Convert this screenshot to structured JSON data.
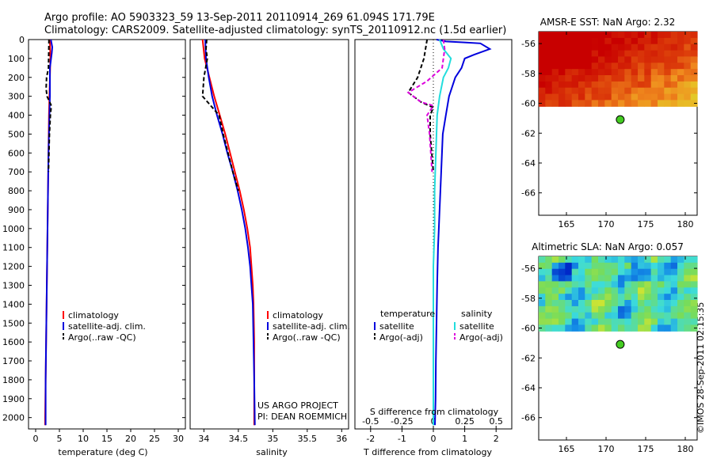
{
  "header": {
    "line1": "Argo profile: AO 5903323_59 13-Sep-2011 20110914_269 61.094S 171.79E",
    "line2": "Climatology: CARS2009. Satellite-adjusted climatology: synTS_20110912.nc (1.5d earlier)"
  },
  "side_label": "©IMOS 28-Sep-2011 02:15:35",
  "colors": {
    "climatology": "#ff0000",
    "satellite": "#0000dd",
    "argo": "#000000",
    "satellite_s": "#22dddd",
    "argo_s": "#dd00dd"
  },
  "chart_data": [
    {
      "type": "line",
      "id": "temperature",
      "xlabel": "temperature (deg C)",
      "xlim": [
        -1.5,
        31.5
      ],
      "ylim": [
        0,
        2060
      ],
      "y_inverted": true,
      "xticks": [
        0,
        5,
        10,
        15,
        20,
        25,
        30
      ],
      "yticks": [
        0,
        100,
        200,
        300,
        400,
        500,
        600,
        700,
        800,
        900,
        1000,
        1100,
        1200,
        1300,
        1400,
        1500,
        1600,
        1700,
        1800,
        1900,
        2000
      ],
      "legend": [
        "climatology",
        "satellite-adj. clim.",
        "Argo(..raw -QC)"
      ],
      "series": [
        {
          "name": "climatology",
          "color": "#ff0000",
          "dash": "",
          "points": [
            [
              3.0,
              0
            ],
            [
              3.1,
              100
            ],
            [
              3.0,
              200
            ],
            [
              2.9,
              300
            ],
            [
              2.8,
              400
            ],
            [
              2.7,
              600
            ],
            [
              2.6,
              800
            ],
            [
              2.5,
              1000
            ],
            [
              2.4,
              1200
            ],
            [
              2.3,
              1400
            ],
            [
              2.2,
              1600
            ],
            [
              2.1,
              1800
            ],
            [
              2.0,
              2000
            ],
            [
              2.0,
              2040
            ]
          ]
        },
        {
          "name": "satellite-adj. clim.",
          "color": "#0000dd",
          "dash": "",
          "points": [
            [
              3.2,
              0
            ],
            [
              3.5,
              40
            ],
            [
              3.4,
              70
            ],
            [
              3.0,
              150
            ],
            [
              3.0,
              300
            ],
            [
              2.9,
              400
            ],
            [
              2.7,
              600
            ],
            [
              2.6,
              800
            ],
            [
              2.5,
              1000
            ],
            [
              2.4,
              1200
            ],
            [
              2.3,
              1400
            ],
            [
              2.2,
              1600
            ],
            [
              2.1,
              1800
            ],
            [
              2.1,
              2040
            ]
          ]
        },
        {
          "name": "Argo(..raw -QC)",
          "color": "#000000",
          "dash": "5,3",
          "points": [
            [
              2.8,
              0
            ],
            [
              2.7,
              150
            ],
            [
              2.3,
              200
            ],
            [
              2.2,
              260
            ],
            [
              2.4,
              300
            ],
            [
              3.3,
              350
            ],
            [
              3.1,
              400
            ],
            [
              2.9,
              500
            ],
            [
              2.7,
              700
            ]
          ]
        }
      ]
    },
    {
      "type": "line",
      "id": "salinity",
      "xlabel": "salinity",
      "xlim": [
        33.8,
        36.1
      ],
      "ylim": [
        0,
        2060
      ],
      "y_inverted": true,
      "xticks": [
        34,
        34.5,
        35,
        35.5,
        36
      ],
      "legend": [
        "climatology",
        "satellite-adj. clim.",
        "Argo(..raw -QC)"
      ],
      "series": [
        {
          "name": "climatology",
          "color": "#ff0000",
          "dash": "",
          "points": [
            [
              33.98,
              0
            ],
            [
              34.01,
              100
            ],
            [
              34.08,
              200
            ],
            [
              34.15,
              300
            ],
            [
              34.23,
              400
            ],
            [
              34.31,
              500
            ],
            [
              34.38,
              600
            ],
            [
              34.45,
              700
            ],
            [
              34.52,
              800
            ],
            [
              34.58,
              900
            ],
            [
              34.63,
              1000
            ],
            [
              34.67,
              1100
            ],
            [
              34.69,
              1200
            ],
            [
              34.71,
              1300
            ],
            [
              34.72,
              1400
            ],
            [
              34.73,
              1600
            ],
            [
              34.73,
              1800
            ],
            [
              34.73,
              2040
            ]
          ]
        },
        {
          "name": "satellite-adj. clim.",
          "color": "#0000dd",
          "dash": "",
          "points": [
            [
              34.02,
              0
            ],
            [
              34.03,
              100
            ],
            [
              34.07,
              200
            ],
            [
              34.12,
              300
            ],
            [
              34.19,
              400
            ],
            [
              34.27,
              500
            ],
            [
              34.34,
              600
            ],
            [
              34.42,
              700
            ],
            [
              34.49,
              800
            ],
            [
              34.55,
              900
            ],
            [
              34.6,
              1000
            ],
            [
              34.64,
              1100
            ],
            [
              34.67,
              1200
            ],
            [
              34.69,
              1300
            ],
            [
              34.71,
              1400
            ],
            [
              34.72,
              1600
            ],
            [
              34.73,
              1800
            ],
            [
              34.74,
              2040
            ]
          ]
        },
        {
          "name": "Argo(..raw -QC)",
          "color": "#000000",
          "dash": "5,3",
          "points": [
            [
              34.04,
              0
            ],
            [
              34.03,
              50
            ],
            [
              34.05,
              100
            ],
            [
              34.0,
              200
            ],
            [
              33.98,
              300
            ],
            [
              34.1,
              350
            ],
            [
              34.22,
              400
            ],
            [
              34.28,
              500
            ],
            [
              34.35,
              600
            ],
            [
              34.42,
              700
            ],
            [
              34.5,
              800
            ]
          ]
        }
      ],
      "annotations": [
        "US ARGO PROJECT",
        "PI: DEAN ROEMMICH"
      ]
    },
    {
      "type": "line",
      "id": "difference",
      "xlabel": "T difference from climatology",
      "xlabel2": "S difference from climatology",
      "xlim": [
        -2.5,
        2.5
      ],
      "xticks": [
        -2,
        -1,
        0,
        1,
        2
      ],
      "xticklabels": [
        "-2",
        "-1",
        "0",
        "1",
        "2"
      ],
      "xlim_s": [
        -0.625,
        0.625
      ],
      "xticks_s": [
        -0.5,
        -0.25,
        0,
        0.25,
        0.5
      ],
      "xticklabels_s": [
        "-0.5",
        "-0.25",
        "0",
        "0.25",
        "0.5"
      ],
      "ylim": [
        0,
        2060
      ],
      "y_inverted": true,
      "legend_groups": [
        "temperature",
        "salinity"
      ],
      "legend": [
        "satellite",
        "Argo(-adj)",
        "satellite",
        "Argo(-adj)"
      ],
      "series": [
        {
          "name": "satellite",
          "group": "temperature",
          "color": "#0000dd",
          "dash": "",
          "points": [
            [
              0.1,
              0
            ],
            [
              0.4,
              10
            ],
            [
              1.0,
              15
            ],
            [
              1.5,
              20
            ],
            [
              1.8,
              50
            ],
            [
              1.3,
              80
            ],
            [
              1.0,
              100
            ],
            [
              0.9,
              150
            ],
            [
              0.7,
              200
            ],
            [
              0.5,
              300
            ],
            [
              0.4,
              400
            ],
            [
              0.3,
              500
            ],
            [
              0.25,
              700
            ],
            [
              0.2,
              900
            ],
            [
              0.15,
              1100
            ],
            [
              0.12,
              1300
            ],
            [
              0.1,
              1500
            ],
            [
              0.08,
              1700
            ],
            [
              0.07,
              1900
            ],
            [
              0.05,
              2040
            ]
          ]
        },
        {
          "name": "Argo(-adj)",
          "group": "temperature",
          "color": "#000000",
          "dash": "5,3",
          "points": [
            [
              -0.2,
              0
            ],
            [
              -0.3,
              100
            ],
            [
              -0.5,
              200
            ],
            [
              -0.8,
              280
            ],
            [
              -0.4,
              330
            ],
            [
              0.0,
              360
            ],
            [
              -0.1,
              400
            ],
            [
              -0.1,
              500
            ],
            [
              -0.05,
              600
            ],
            [
              0.0,
              700
            ]
          ]
        },
        {
          "name": "satellite",
          "group": "salinity",
          "color": "#22dddd",
          "dash": "",
          "points": [
            [
              0.05,
              0
            ],
            [
              0.08,
              50
            ],
            [
              0.14,
              100
            ],
            [
              0.12,
              150
            ],
            [
              0.08,
              200
            ],
            [
              0.05,
              300
            ],
            [
              0.03,
              400
            ],
            [
              0.02,
              600
            ],
            [
              0.01,
              800
            ],
            [
              0.01,
              1000
            ],
            [
              0.0,
              1200
            ],
            [
              0.0,
              1500
            ],
            [
              0.0,
              1800
            ],
            [
              0.0,
              2040
            ]
          ]
        },
        {
          "name": "Argo(-adj)",
          "group": "salinity",
          "color": "#dd00dd",
          "dash": "5,3",
          "points": [
            [
              0.08,
              0
            ],
            [
              0.09,
              50
            ],
            [
              0.07,
              150
            ],
            [
              -0.05,
              220
            ],
            [
              -0.2,
              280
            ],
            [
              -0.1,
              330
            ],
            [
              0.0,
              350
            ],
            [
              -0.05,
              400
            ],
            [
              -0.03,
              500
            ],
            [
              -0.02,
              600
            ],
            [
              -0.01,
              700
            ]
          ]
        }
      ]
    },
    {
      "type": "heatmap",
      "id": "sst-map",
      "title": "AMSR-E SST: NaN Argo: 2.32",
      "xlim": [
        161.5,
        181.5
      ],
      "ylim": [
        -67.5,
        -55.2
      ],
      "xticks": [
        165,
        170,
        175,
        180
      ],
      "yticks": [
        -56,
        -58,
        -60,
        -62,
        -64,
        -66
      ],
      "yticklabels": [
        "-56",
        "-58",
        "-60",
        "-62",
        "-64",
        "-66"
      ],
      "data_extent": {
        "lon": [
          161.5,
          181.5
        ],
        "lat": [
          -60.2,
          -55.2
        ]
      },
      "argo_point": {
        "lon": 171.79,
        "lat": -61.094
      },
      "palette": "sst"
    },
    {
      "type": "heatmap",
      "id": "sla-map",
      "title": "Altimetric SLA: NaN Argo: 0.057",
      "xlim": [
        161.5,
        181.5
      ],
      "ylim": [
        -67.5,
        -55.2
      ],
      "xticks": [
        165,
        170,
        175,
        180
      ],
      "yticks": [
        -56,
        -58,
        -60,
        -62,
        -64,
        -66
      ],
      "yticklabels": [
        "-56",
        "-58",
        "-60",
        "-62",
        "-64",
        "-66"
      ],
      "data_extent": {
        "lon": [
          161.5,
          181.5
        ],
        "lat": [
          -60.2,
          -55.2
        ]
      },
      "argo_point": {
        "lon": 171.79,
        "lat": -61.094
      },
      "palette": "sla"
    }
  ]
}
